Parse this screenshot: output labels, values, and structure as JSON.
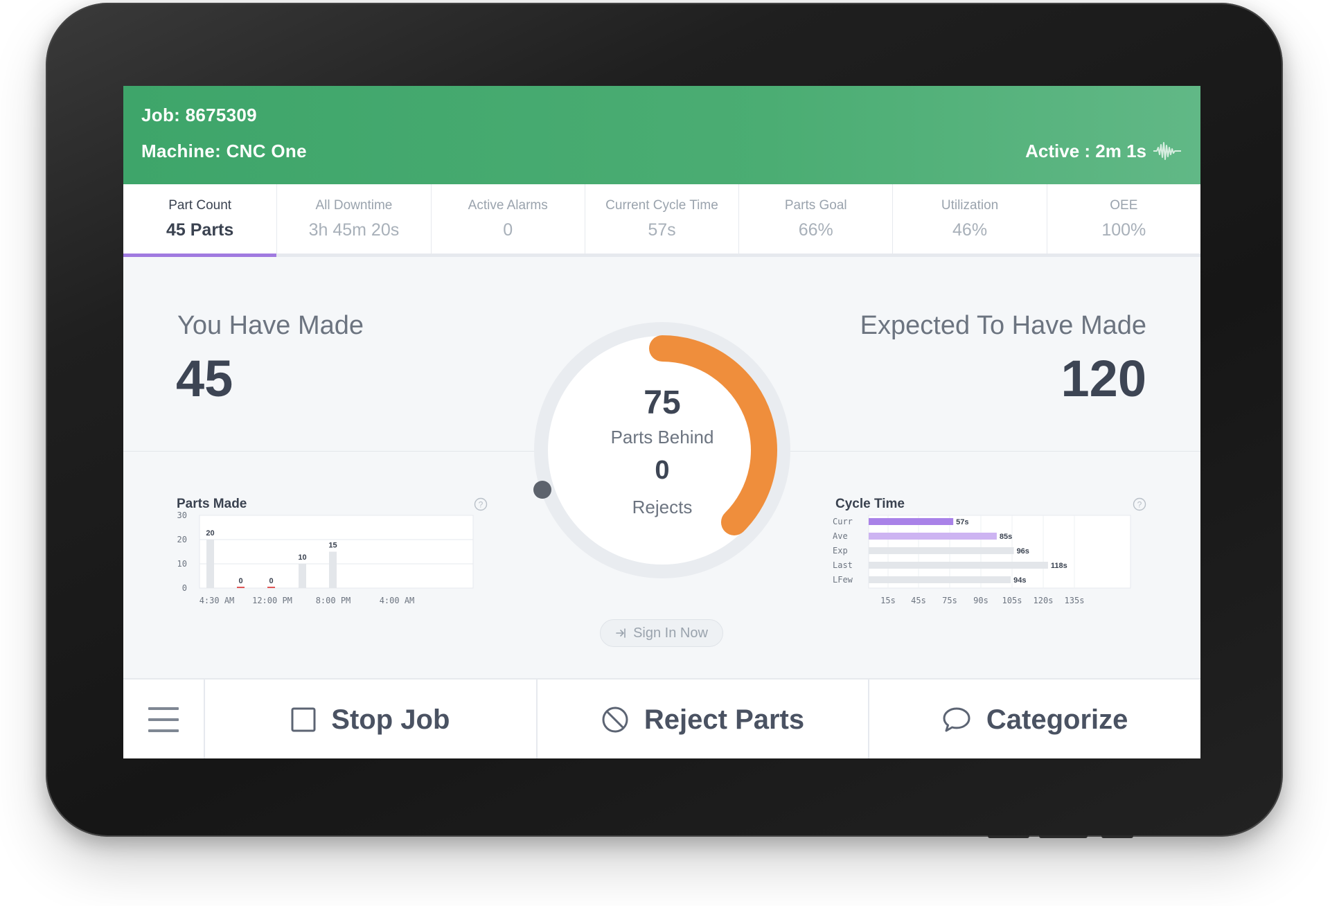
{
  "header": {
    "job": "Job: 8675309",
    "machine": "Machine: CNC One",
    "status": "Active : 2m 1s"
  },
  "tabs": [
    {
      "label": "Part Count",
      "value": "45 Parts",
      "active": true
    },
    {
      "label": "All Downtime",
      "value": "3h 45m 20s"
    },
    {
      "label": "Active Alarms",
      "value": "0"
    },
    {
      "label": "Current Cycle Time",
      "value": "57s"
    },
    {
      "label": "Parts Goal",
      "value": "66%"
    },
    {
      "label": "Utilization",
      "value": "46%"
    },
    {
      "label": "OEE",
      "value": "100%"
    }
  ],
  "main": {
    "made_label": "You Have Made",
    "made_value": "45",
    "expected_label": "Expected To Have Made",
    "expected_value": "120",
    "behind_value": "75",
    "behind_label": "Parts Behind",
    "rejects_value": "0",
    "rejects_label": "Rejects",
    "gauge_progress": 0.375,
    "sign_in": "Sign In Now"
  },
  "colors": {
    "header_green": "#3ea56a",
    "tab_accent": "#a07ae0",
    "gauge_orange": "#ef8e3c",
    "bar_curr": "#a982e8",
    "bar_ave": "#cdb4f2",
    "bar_grey": "#e3e6ea",
    "zero_red": "#e05656"
  },
  "chart_data": [
    {
      "type": "bar",
      "title": "Parts Made",
      "y_ticks": [
        0,
        10,
        20,
        30
      ],
      "ylim": [
        0,
        30
      ],
      "x_ticks": [
        "4:30 AM",
        "12:00 PM",
        "8:00 PM",
        "4:00 AM"
      ],
      "bars": [
        {
          "value": 20,
          "label": "20"
        },
        {
          "value": 0,
          "label": "0"
        },
        {
          "value": 0,
          "label": "0"
        },
        {
          "value": 10,
          "label": "10"
        },
        {
          "value": 15,
          "label": "15"
        }
      ]
    },
    {
      "type": "bar",
      "orientation": "horizontal",
      "title": "Cycle Time",
      "categories": [
        "Curr",
        "Ave",
        "Exp",
        "Last",
        "LFew"
      ],
      "values": [
        57,
        85,
        96,
        118,
        94
      ],
      "value_labels": [
        "57s",
        "85s",
        "96s",
        "118s",
        "94s"
      ],
      "x_ticks": [
        "15s",
        "45s",
        "75s",
        "90s",
        "105s",
        "120s",
        "135s"
      ]
    }
  ],
  "bottom": {
    "stop": "Stop Job",
    "reject": "Reject Parts",
    "categorize": "Categorize"
  }
}
